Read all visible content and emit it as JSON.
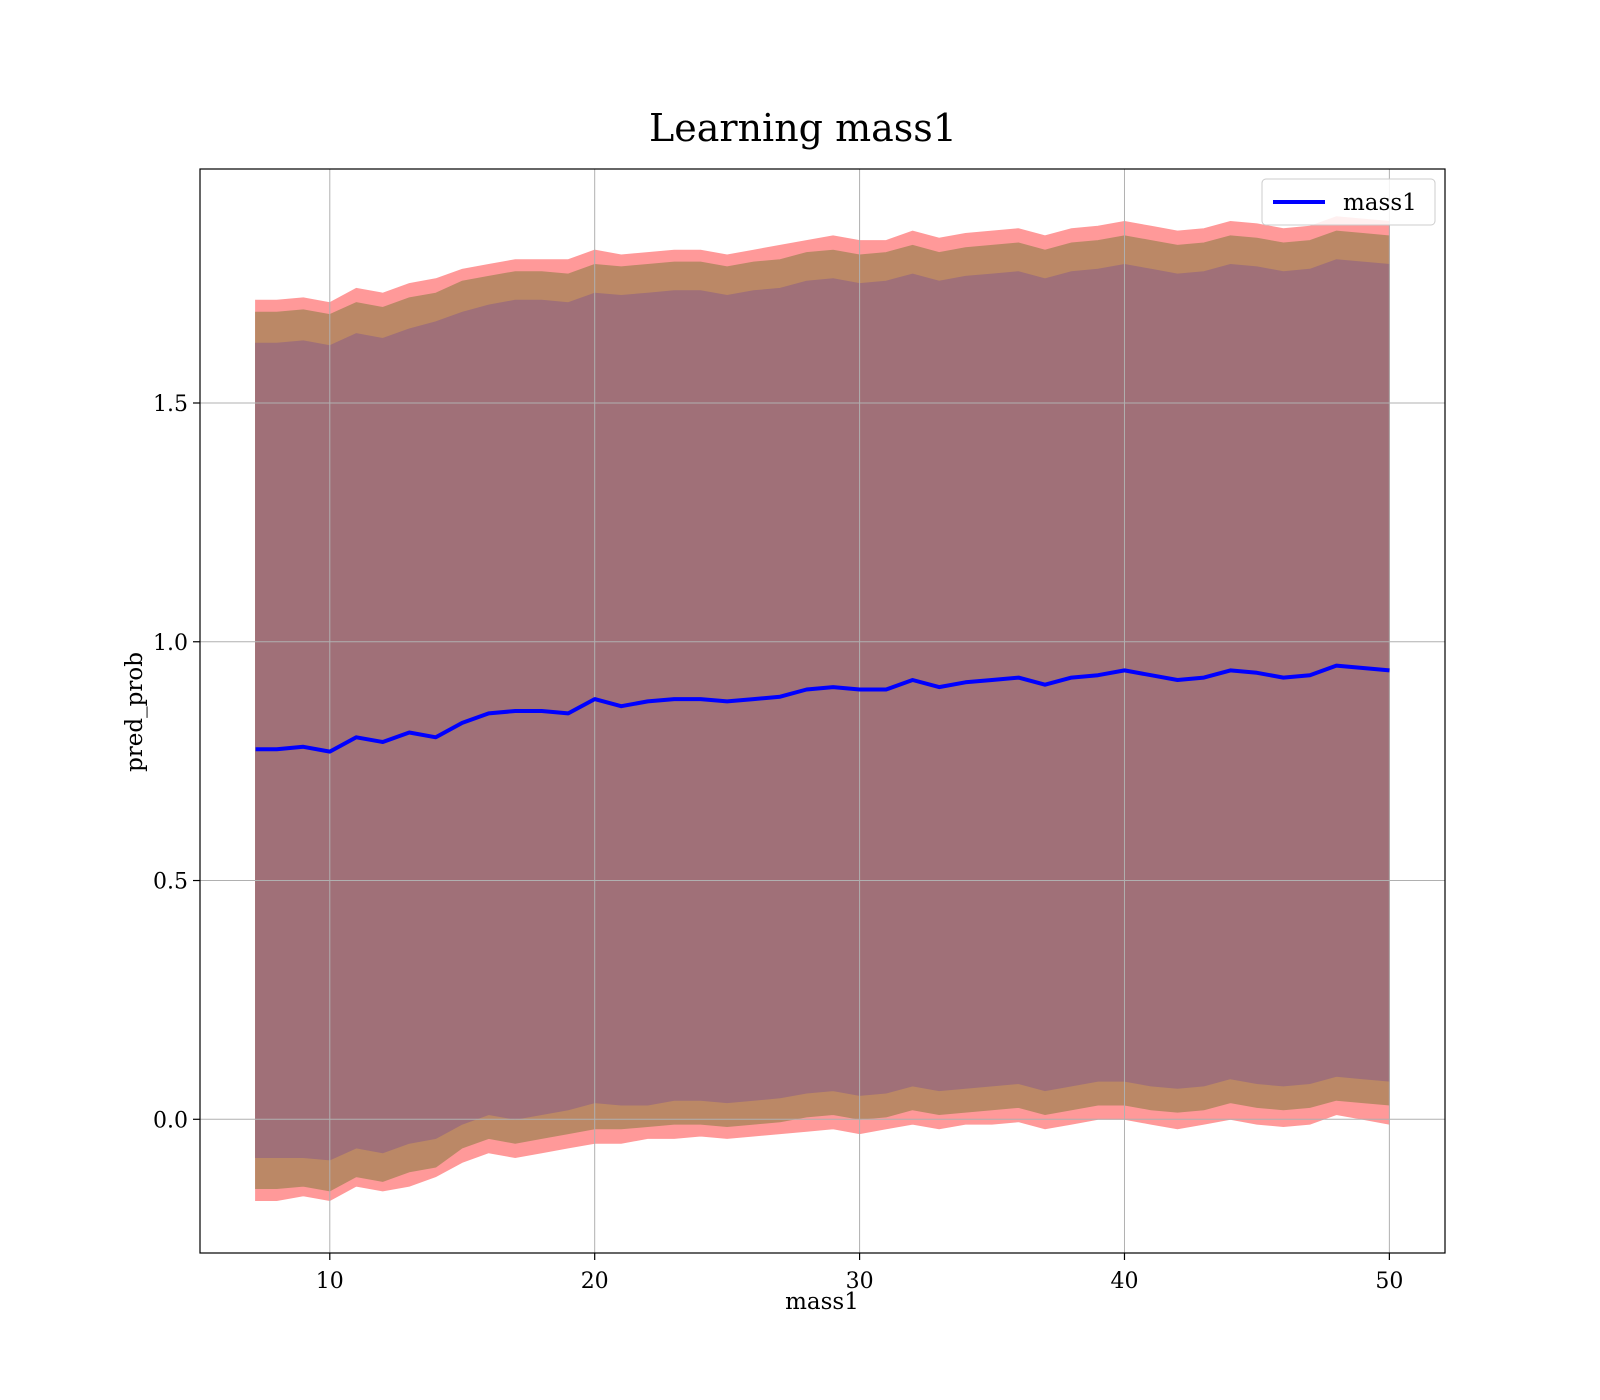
{
  "chart_data": {
    "type": "area",
    "title": "Learning mass1",
    "xlabel": "mass1",
    "ylabel": "pred_prob",
    "xlim": [
      5.1,
      52.1
    ],
    "ylim": [
      -0.28,
      1.99
    ],
    "xticks": [
      10,
      20,
      30,
      40,
      50
    ],
    "yticks": [
      0.0,
      0.5,
      1.0,
      1.5
    ],
    "xtick_labels": [
      "10",
      "20",
      "30",
      "40",
      "50"
    ],
    "ytick_labels": [
      "0.0",
      "0.5",
      "1.0",
      "1.5"
    ],
    "grid": true,
    "legend": {
      "position": "top-right",
      "entries": [
        "mass1"
      ]
    },
    "x": [
      7.2,
      8.0,
      9.0,
      10.0,
      11.0,
      12.0,
      13.0,
      14.0,
      15.0,
      16.0,
      17.0,
      18.0,
      19.0,
      20.0,
      21.0,
      22.0,
      23.0,
      24.0,
      25.0,
      26.0,
      27.0,
      28.0,
      29.0,
      30.0,
      31.0,
      32.0,
      33.0,
      34.0,
      35.0,
      36.0,
      37.0,
      38.0,
      39.0,
      40.0,
      41.0,
      42.0,
      43.0,
      44.0,
      45.0,
      46.0,
      47.0,
      48.0,
      49.0,
      50.0
    ],
    "series": [
      {
        "name": "mass1",
        "color": "#0000ff",
        "values": [
          0.775,
          0.775,
          0.78,
          0.77,
          0.8,
          0.79,
          0.81,
          0.8,
          0.83,
          0.85,
          0.855,
          0.855,
          0.85,
          0.88,
          0.865,
          0.875,
          0.88,
          0.88,
          0.875,
          0.88,
          0.885,
          0.9,
          0.905,
          0.9,
          0.9,
          0.92,
          0.905,
          0.915,
          0.92,
          0.925,
          0.91,
          0.925,
          0.93,
          0.94,
          0.93,
          0.92,
          0.925,
          0.94,
          0.935,
          0.925,
          0.93,
          0.95,
          0.945,
          0.94
        ]
      }
    ],
    "bands": [
      {
        "color": "#ff9999",
        "lower": [
          -0.17,
          -0.17,
          -0.16,
          -0.17,
          -0.14,
          -0.15,
          -0.14,
          -0.12,
          -0.09,
          -0.07,
          -0.08,
          -0.07,
          -0.06,
          -0.05,
          -0.05,
          -0.04,
          -0.04,
          -0.035,
          -0.04,
          -0.035,
          -0.03,
          -0.025,
          -0.02,
          -0.03,
          -0.02,
          -0.01,
          -0.02,
          -0.01,
          -0.01,
          -0.005,
          -0.02,
          -0.01,
          0.0,
          0.0,
          -0.01,
          -0.02,
          -0.01,
          0.0,
          -0.01,
          -0.015,
          -0.01,
          0.01,
          0.0,
          -0.01
        ],
        "upper": [
          1.715,
          1.715,
          1.72,
          1.71,
          1.74,
          1.73,
          1.75,
          1.76,
          1.78,
          1.79,
          1.8,
          1.8,
          1.8,
          1.82,
          1.81,
          1.815,
          1.82,
          1.82,
          1.81,
          1.82,
          1.83,
          1.84,
          1.85,
          1.84,
          1.84,
          1.86,
          1.845,
          1.855,
          1.86,
          1.865,
          1.85,
          1.865,
          1.87,
          1.88,
          1.87,
          1.86,
          1.865,
          1.88,
          1.875,
          1.865,
          1.87,
          1.89,
          1.885,
          1.88
        ]
      },
      {
        "color": "#bb8866",
        "lower": [
          -0.145,
          -0.145,
          -0.14,
          -0.15,
          -0.12,
          -0.13,
          -0.11,
          -0.1,
          -0.06,
          -0.04,
          -0.05,
          -0.04,
          -0.03,
          -0.02,
          -0.02,
          -0.015,
          -0.01,
          -0.01,
          -0.015,
          -0.01,
          -0.005,
          0.005,
          0.01,
          0.0,
          0.005,
          0.02,
          0.01,
          0.015,
          0.02,
          0.025,
          0.01,
          0.02,
          0.03,
          0.03,
          0.02,
          0.015,
          0.02,
          0.035,
          0.025,
          0.02,
          0.025,
          0.04,
          0.035,
          0.03
        ],
        "upper": [
          1.69,
          1.69,
          1.695,
          1.685,
          1.71,
          1.7,
          1.72,
          1.73,
          1.755,
          1.765,
          1.775,
          1.775,
          1.77,
          1.79,
          1.785,
          1.79,
          1.795,
          1.795,
          1.785,
          1.795,
          1.8,
          1.815,
          1.82,
          1.81,
          1.815,
          1.83,
          1.815,
          1.825,
          1.83,
          1.835,
          1.82,
          1.835,
          1.84,
          1.85,
          1.84,
          1.83,
          1.835,
          1.85,
          1.845,
          1.835,
          1.84,
          1.86,
          1.855,
          1.85
        ]
      },
      {
        "color": "#a07078",
        "lower": [
          -0.08,
          -0.08,
          -0.08,
          -0.085,
          -0.06,
          -0.07,
          -0.05,
          -0.04,
          -0.01,
          0.01,
          0.0,
          0.01,
          0.02,
          0.035,
          0.03,
          0.03,
          0.04,
          0.04,
          0.035,
          0.04,
          0.045,
          0.055,
          0.06,
          0.05,
          0.055,
          0.07,
          0.06,
          0.065,
          0.07,
          0.075,
          0.06,
          0.07,
          0.08,
          0.08,
          0.07,
          0.065,
          0.07,
          0.085,
          0.075,
          0.07,
          0.075,
          0.09,
          0.085,
          0.08
        ],
        "upper": [
          1.625,
          1.625,
          1.63,
          1.62,
          1.645,
          1.635,
          1.655,
          1.67,
          1.69,
          1.705,
          1.715,
          1.715,
          1.71,
          1.73,
          1.725,
          1.73,
          1.735,
          1.735,
          1.725,
          1.735,
          1.74,
          1.755,
          1.76,
          1.75,
          1.755,
          1.77,
          1.755,
          1.765,
          1.77,
          1.775,
          1.76,
          1.775,
          1.78,
          1.79,
          1.78,
          1.77,
          1.775,
          1.79,
          1.785,
          1.775,
          1.78,
          1.8,
          1.795,
          1.79
        ]
      }
    ]
  }
}
